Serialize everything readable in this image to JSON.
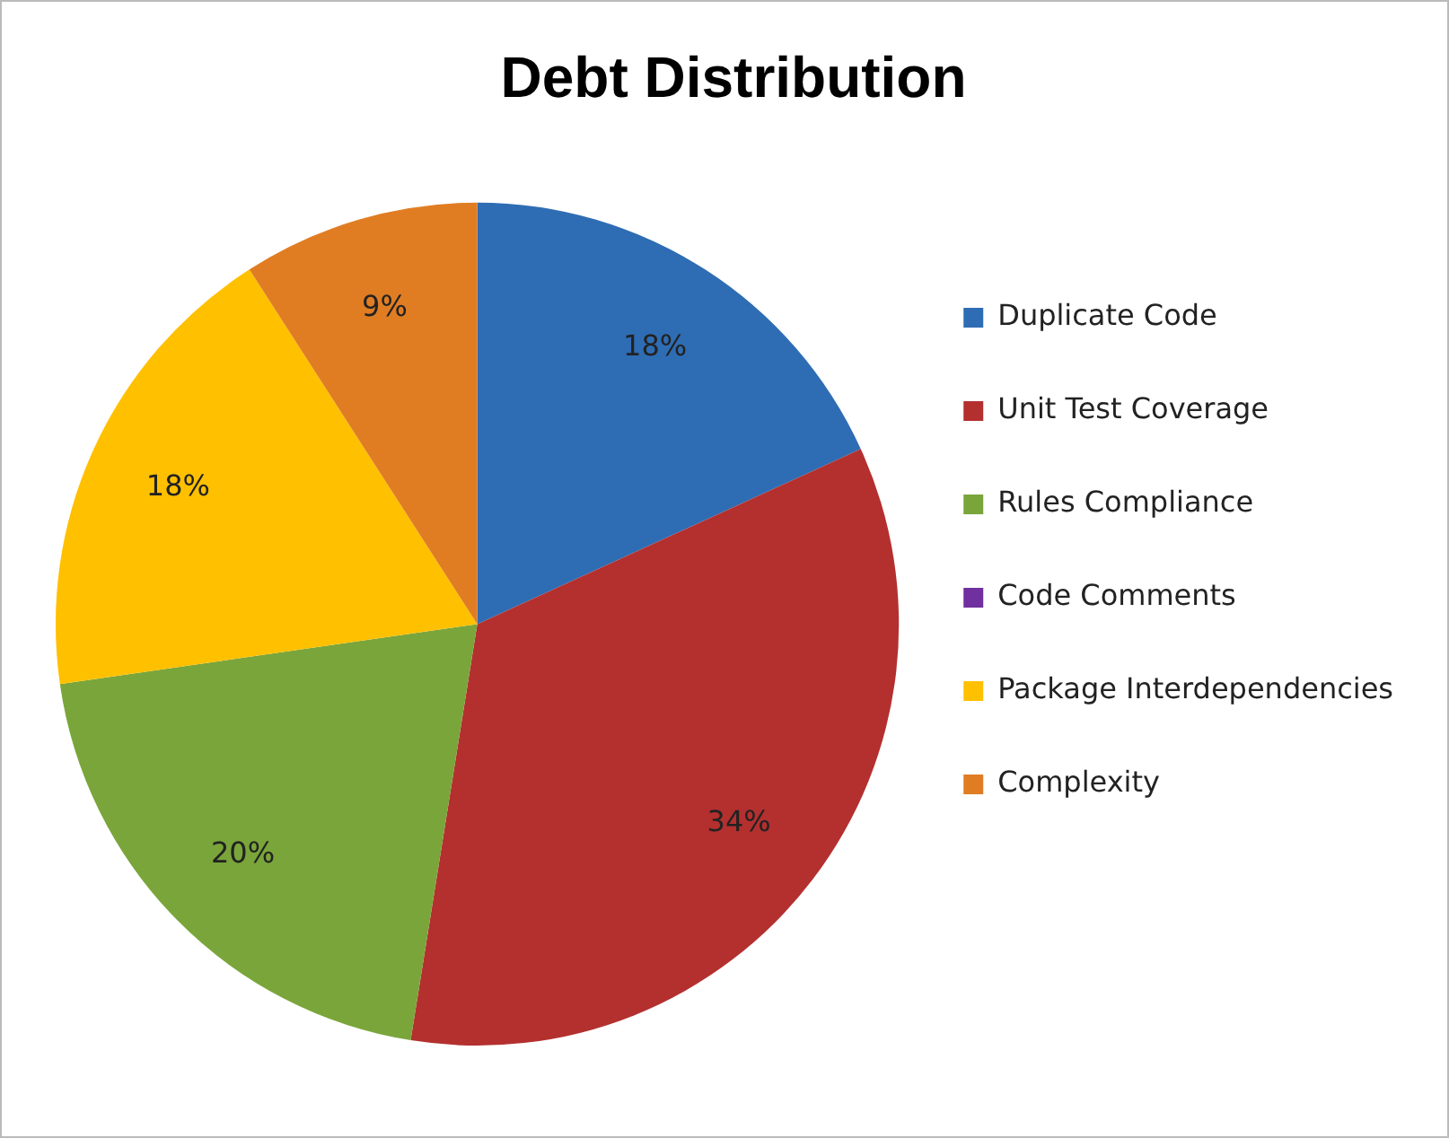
{
  "chart_data": {
    "type": "pie",
    "title": "Debt Distribution",
    "categories": [
      "Duplicate Code",
      "Unit Test Coverage",
      "Rules Compliance",
      "Code Comments",
      "Package Interdependencies",
      "Complexity"
    ],
    "values": [
      18,
      34,
      20,
      0,
      18,
      9
    ],
    "colors": [
      "#2e6db4",
      "#b3302f",
      "#7aa53a",
      "#7030a0",
      "#ffc000",
      "#e07d23"
    ],
    "value_labels": [
      "18%",
      "34%",
      "20%",
      null,
      "18%",
      "9%"
    ],
    "legend": "right"
  }
}
